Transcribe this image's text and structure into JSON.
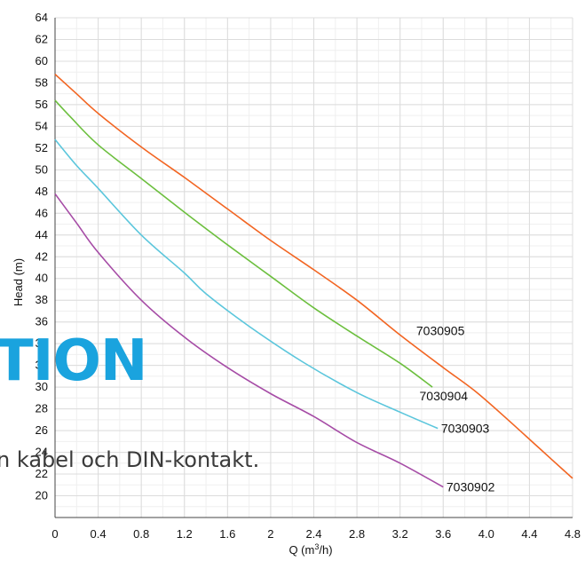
{
  "chart_data": {
    "type": "line",
    "xlabel_main": "Q (m",
    "xlabel_sup": "3",
    "xlabel_tail": "/h)",
    "ylabel": "Head (m)",
    "xlim": [
      0,
      4.8
    ],
    "ylim": [
      18,
      64
    ],
    "x_ticks": [
      "0",
      "0.4",
      "0.8",
      "1.2",
      "1.6",
      "2",
      "2.4",
      "2.8",
      "3.2",
      "3.6",
      "4.0",
      "4.4",
      "4.8"
    ],
    "y_ticks": [
      "20",
      "22",
      "24",
      "26",
      "28",
      "30",
      "32",
      "34",
      "36",
      "38",
      "40",
      "42",
      "44",
      "46",
      "48",
      "50",
      "52",
      "54",
      "56",
      "58",
      "60",
      "62",
      "64"
    ],
    "grid": true,
    "series": [
      {
        "name": "7030905",
        "color": "#f26522",
        "points": [
          [
            0,
            58.8
          ],
          [
            0.2,
            57
          ],
          [
            0.4,
            55.2
          ],
          [
            0.8,
            52.1
          ],
          [
            1.2,
            49.3
          ],
          [
            1.6,
            46.4
          ],
          [
            2.0,
            43.5
          ],
          [
            2.4,
            40.8
          ],
          [
            2.8,
            38
          ],
          [
            3.2,
            34.8
          ],
          [
            3.6,
            31.8
          ],
          [
            3.9,
            29.6
          ],
          [
            4.2,
            27
          ],
          [
            4.5,
            24.3
          ],
          [
            4.8,
            21.6
          ]
        ]
      },
      {
        "name": "7030904",
        "color": "#6cbf3e",
        "points": [
          [
            0,
            56.4
          ],
          [
            0.15,
            54.8
          ],
          [
            0.4,
            52.3
          ],
          [
            0.8,
            49.2
          ],
          [
            1.2,
            46.1
          ],
          [
            1.6,
            43.1
          ],
          [
            2.0,
            40.2
          ],
          [
            2.4,
            37.3
          ],
          [
            2.8,
            34.7
          ],
          [
            3.2,
            32.2
          ],
          [
            3.5,
            30
          ]
        ]
      },
      {
        "name": "7030903",
        "color": "#5bc6dc",
        "points": [
          [
            0,
            52.8
          ],
          [
            0.2,
            50.4
          ],
          [
            0.4,
            48.3
          ],
          [
            0.8,
            44
          ],
          [
            1.2,
            40.5
          ],
          [
            1.4,
            38.6
          ],
          [
            1.8,
            35.6
          ],
          [
            2.3,
            32.3
          ],
          [
            2.8,
            29.5
          ],
          [
            3.2,
            27.7
          ],
          [
            3.55,
            26.2
          ]
        ]
      },
      {
        "name": "7030902",
        "color": "#a64ca6",
        "points": [
          [
            0,
            47.8
          ],
          [
            0.2,
            45.1
          ],
          [
            0.4,
            42.4
          ],
          [
            0.8,
            38
          ],
          [
            1.2,
            34.6
          ],
          [
            1.6,
            31.8
          ],
          [
            2.0,
            29.4
          ],
          [
            2.4,
            27.3
          ],
          [
            2.8,
            24.9
          ],
          [
            3.2,
            23
          ],
          [
            3.6,
            20.8
          ]
        ]
      }
    ]
  },
  "overlay": {
    "title_fragment": "TION",
    "caption_fragment": "n kabel och DIN-kontakt.",
    "title_color": "#1aa3de"
  }
}
